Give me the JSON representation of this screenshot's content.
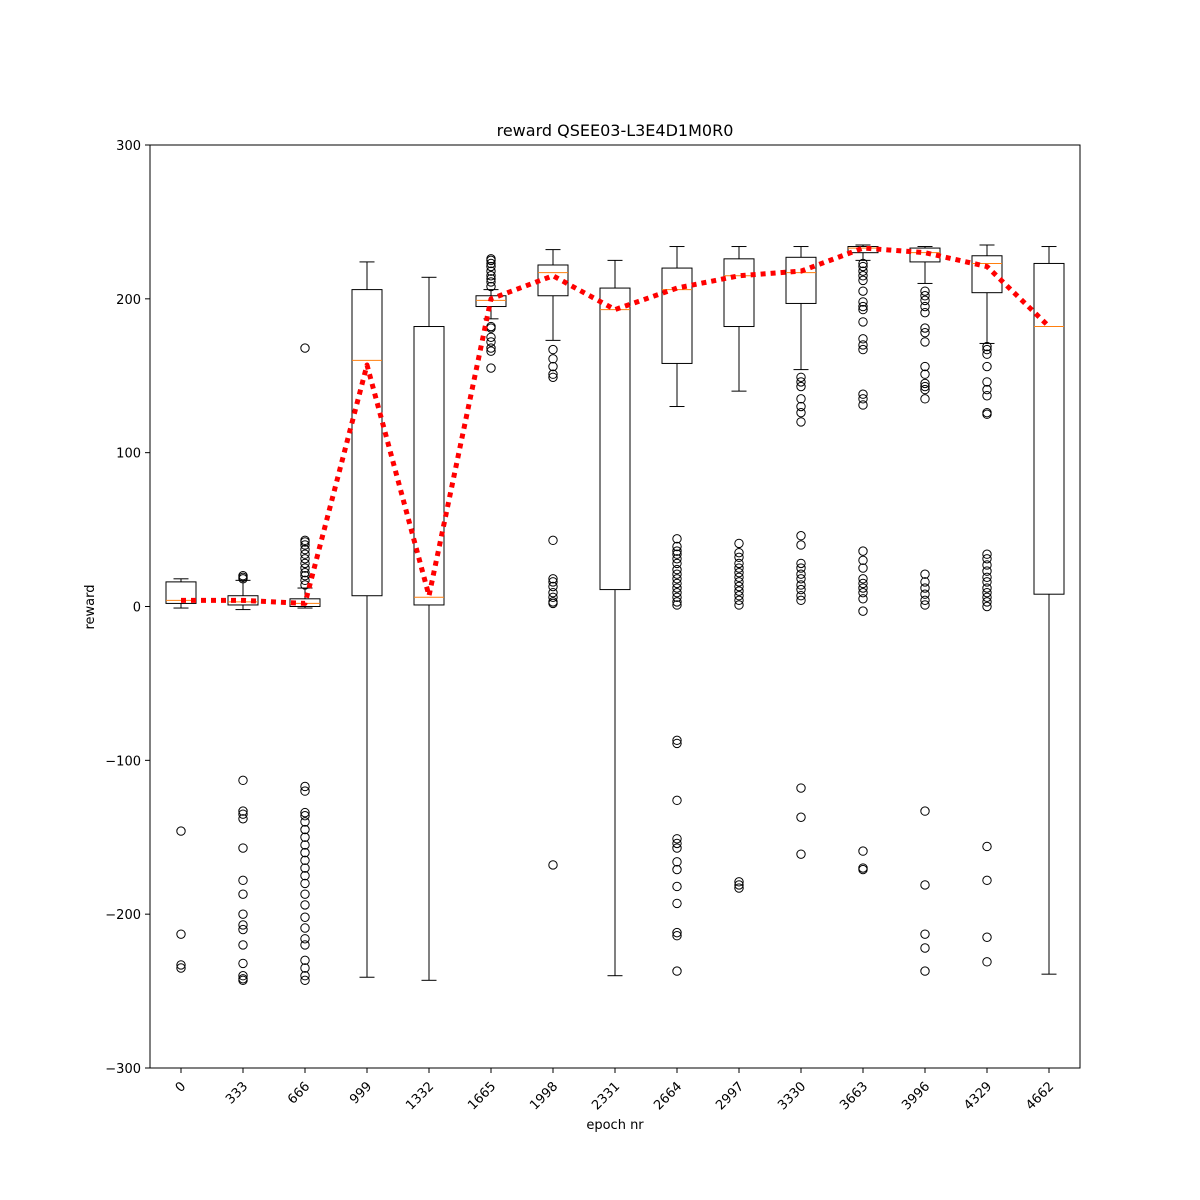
{
  "chart_data": {
    "type": "boxplot",
    "title": "reward QSEE03-L3E4D1M0R0",
    "xlabel": "epoch nr",
    "ylabel": "reward",
    "ylim": [
      -300,
      300
    ],
    "yticks": [
      -300,
      -200,
      -100,
      0,
      100,
      200,
      300
    ],
    "grid": false,
    "categories": [
      "0",
      "333",
      "666",
      "999",
      "1332",
      "1665",
      "1998",
      "2331",
      "2664",
      "2997",
      "3330",
      "3663",
      "3996",
      "4329",
      "4662"
    ],
    "mean_line_values": [
      4,
      4,
      2,
      157,
      7,
      200,
      215,
      193,
      207,
      215,
      218,
      233,
      230,
      221,
      182
    ],
    "boxes": [
      {
        "whisker_low": -1,
        "q1": 2,
        "median": 4,
        "q3": 16,
        "whisker_high": 18,
        "outliers": [
          -146,
          -213,
          -233,
          -235
        ]
      },
      {
        "whisker_low": -2,
        "q1": 1,
        "median": 3,
        "q3": 7,
        "whisker_high": 17,
        "outliers": [
          18,
          19,
          20,
          -113,
          -133,
          -135,
          -138,
          -157,
          -178,
          -187,
          -200,
          -207,
          -210,
          -220,
          -232,
          -240,
          -242,
          -243
        ]
      },
      {
        "whisker_low": -1,
        "q1": 0,
        "median": 2,
        "q3": 5,
        "whisker_high": 12,
        "outliers": [
          168,
          14,
          17,
          20,
          22,
          25,
          28,
          31,
          34,
          37,
          40,
          42,
          43,
          -117,
          -120,
          -134,
          -136,
          -140,
          -145,
          -150,
          -155,
          -160,
          -165,
          -170,
          -175,
          -180,
          -187,
          -194,
          -202,
          -209,
          -216,
          -220,
          -230,
          -235,
          -240,
          -243
        ]
      },
      {
        "whisker_low": -241,
        "q1": 7,
        "median": 160,
        "q3": 206,
        "whisker_high": 224,
        "outliers": []
      },
      {
        "whisker_low": -243,
        "q1": 1,
        "median": 6,
        "q3": 182,
        "whisker_high": 214,
        "outliers": []
      },
      {
        "whisker_low": 187,
        "q1": 195,
        "median": 199,
        "q3": 202,
        "whisker_high": 206,
        "outliers": [
          155,
          166,
          168,
          172,
          175,
          181,
          182,
          208,
          211,
          213,
          215,
          218,
          221,
          223,
          225,
          226
        ]
      },
      {
        "whisker_low": 173,
        "q1": 202,
        "median": 217,
        "q3": 222,
        "whisker_high": 232,
        "outliers": [
          167,
          161,
          156,
          151,
          149,
          43,
          18,
          16,
          13,
          9,
          6,
          3,
          2,
          -168
        ]
      },
      {
        "whisker_low": -240,
        "q1": 11,
        "median": 193,
        "q3": 207,
        "whisker_high": 225,
        "outliers": []
      },
      {
        "whisker_low": 130,
        "q1": 158,
        "median": 206,
        "q3": 220,
        "whisker_high": 234,
        "outliers": [
          44,
          39,
          36,
          34,
          31,
          28,
          24,
          21,
          18,
          15,
          12,
          9,
          6,
          3,
          1,
          -87,
          -89,
          -126,
          -151,
          -154,
          -157,
          -166,
          -171,
          -182,
          -193,
          -212,
          -214,
          -237
        ]
      },
      {
        "whisker_low": 140,
        "q1": 182,
        "median": 215,
        "q3": 226,
        "whisker_high": 234,
        "outliers": [
          41,
          35,
          32,
          28,
          25,
          22,
          19,
          16,
          13,
          10,
          7,
          4,
          1,
          -179,
          -181,
          -183
        ]
      },
      {
        "whisker_low": 154,
        "q1": 197,
        "median": 217,
        "q3": 227,
        "whisker_high": 234,
        "outliers": [
          149,
          146,
          143,
          135,
          130,
          126,
          120,
          46,
          40,
          28,
          25,
          21,
          18,
          14,
          11,
          7,
          4,
          -118,
          -137,
          -161
        ]
      },
      {
        "whisker_low": 225,
        "q1": 230,
        "median": 233,
        "q3": 234,
        "whisker_high": 235,
        "outliers": [
          223,
          221,
          218,
          215,
          212,
          205,
          198,
          195,
          193,
          185,
          174,
          170,
          167,
          138,
          135,
          131,
          36,
          30,
          25,
          18,
          15,
          12,
          9,
          5,
          -3,
          -159,
          -170,
          -171
        ]
      },
      {
        "whisker_low": 210,
        "q1": 224,
        "median": 230,
        "q3": 233,
        "whisker_high": 234,
        "outliers": [
          205,
          202,
          199,
          195,
          191,
          181,
          178,
          172,
          156,
          151,
          145,
          143,
          141,
          135,
          21,
          16,
          12,
          8,
          4,
          1,
          -133,
          -181,
          -213,
          -222,
          -237
        ]
      },
      {
        "whisker_low": 171,
        "q1": 204,
        "median": 223,
        "q3": 228,
        "whisker_high": 235,
        "outliers": [
          169,
          167,
          164,
          156,
          146,
          141,
          137,
          126,
          125,
          34,
          31,
          27,
          23,
          19,
          16,
          12,
          9,
          6,
          3,
          0,
          -156,
          -178,
          -215,
          -231
        ]
      },
      {
        "whisker_low": -239,
        "q1": 8,
        "median": 182,
        "q3": 223,
        "whisker_high": 234,
        "outliers": []
      }
    ],
    "colors": {
      "box": "#000000",
      "median": "#ff7f0e",
      "mean_line": "#ff0000"
    }
  }
}
